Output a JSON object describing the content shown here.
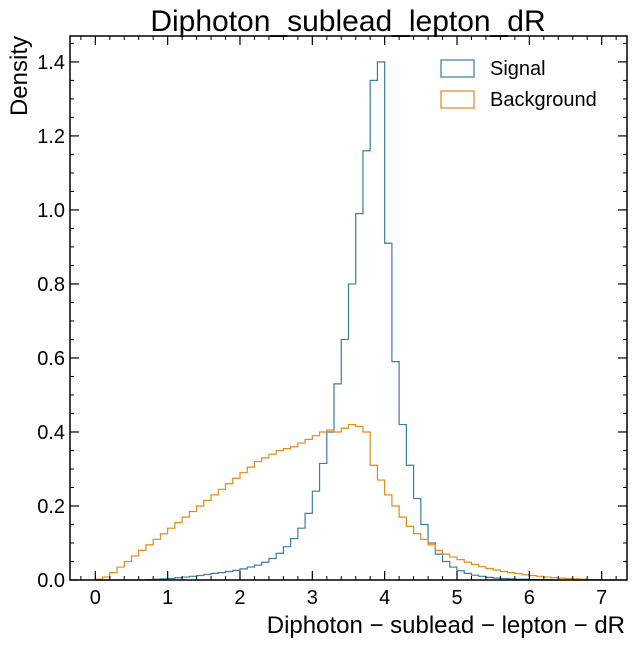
{
  "chart_data": {
    "type": "histogram-step",
    "title": "Diphoton_sublead_lepton_dR",
    "xlabel": "Diphoton − sublead − lepton − dR",
    "ylabel": "Density",
    "xlim": [
      -0.35,
      7.35
    ],
    "ylim": [
      0,
      1.47
    ],
    "xticks": [
      "0",
      "1",
      "2",
      "3",
      "4",
      "5",
      "6",
      "7"
    ],
    "yticks": [
      "0.0",
      "0.2",
      "0.4",
      "0.6",
      "0.8",
      "1.0",
      "1.2",
      "1.4"
    ],
    "legend_position": "top-right",
    "bin_start": 0.0,
    "bin_width": 0.1,
    "series": [
      {
        "name": "Signal",
        "color": "#3a7d9e",
        "values": [
          0,
          0,
          0,
          0,
          0,
          0,
          0,
          0.001,
          0.002,
          0.003,
          0.004,
          0.006,
          0.008,
          0.01,
          0.012,
          0.015,
          0.018,
          0.02,
          0.023,
          0.026,
          0.03,
          0.035,
          0.04,
          0.048,
          0.058,
          0.072,
          0.09,
          0.112,
          0.14,
          0.18,
          0.24,
          0.315,
          0.4,
          0.53,
          0.65,
          0.8,
          0.99,
          1.16,
          1.35,
          1.4,
          0.91,
          0.59,
          0.42,
          0.31,
          0.22,
          0.15,
          0.1,
          0.07,
          0.05,
          0.035,
          0.025,
          0.018,
          0.013,
          0.01,
          0.007,
          0.005,
          0.004,
          0.003,
          0.002,
          0.002,
          0.001,
          0.001,
          0.001,
          0,
          0,
          0,
          0,
          0,
          0,
          0,
          0,
          0
        ]
      },
      {
        "name": "Background",
        "color": "#e08b1a",
        "values": [
          0.002,
          0.008,
          0.02,
          0.035,
          0.05,
          0.065,
          0.08,
          0.095,
          0.11,
          0.125,
          0.14,
          0.155,
          0.17,
          0.185,
          0.2,
          0.215,
          0.23,
          0.245,
          0.26,
          0.275,
          0.29,
          0.305,
          0.32,
          0.33,
          0.34,
          0.35,
          0.355,
          0.36,
          0.37,
          0.38,
          0.39,
          0.4,
          0.405,
          0.4,
          0.41,
          0.42,
          0.415,
          0.4,
          0.31,
          0.27,
          0.23,
          0.2,
          0.17,
          0.145,
          0.125,
          0.11,
          0.095,
          0.08,
          0.07,
          0.062,
          0.055,
          0.048,
          0.042,
          0.036,
          0.031,
          0.027,
          0.023,
          0.02,
          0.017,
          0.014,
          0.012,
          0.01,
          0.008,
          0.006,
          0.005,
          0.004,
          0.003,
          0.002,
          0.001,
          0.001,
          0,
          0
        ]
      }
    ]
  }
}
